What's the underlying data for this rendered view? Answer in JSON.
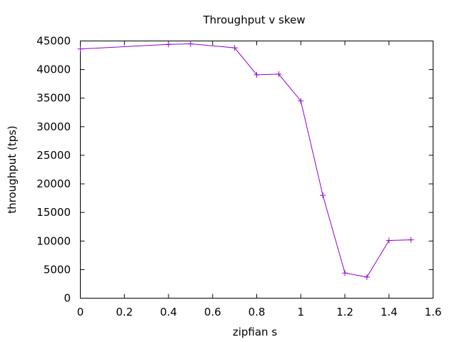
{
  "chart_data": {
    "type": "line",
    "title": "Throughput v skew",
    "xlabel": "zipfian s",
    "ylabel": "throughput (tps)",
    "xlim": [
      0,
      1.6
    ],
    "ylim": [
      0,
      45000
    ],
    "xticks": [
      0,
      0.2,
      0.4,
      0.6,
      0.8,
      1,
      1.2,
      1.4,
      1.6
    ],
    "xtick_labels": [
      "0",
      "0.2",
      "0.4",
      "0.6",
      "0.8",
      "1",
      "1.2",
      "1.4",
      "1.6"
    ],
    "yticks": [
      0,
      5000,
      10000,
      15000,
      20000,
      25000,
      30000,
      35000,
      40000,
      45000
    ],
    "ytick_labels": [
      "0",
      "5000",
      "10000",
      "15000",
      "20000",
      "25000",
      "30000",
      "35000",
      "40000",
      "45000"
    ],
    "grid": false,
    "series": [
      {
        "color": "#9400d3",
        "marker": "plus",
        "x": [
          0,
          0.4,
          0.5,
          0.7,
          0.8,
          0.9,
          1.0,
          1.1,
          1.2,
          1.3,
          1.4,
          1.5
        ],
        "y": [
          43600,
          44400,
          44500,
          43800,
          39100,
          39200,
          34500,
          18000,
          4400,
          3700,
          10100,
          10200
        ]
      }
    ]
  }
}
